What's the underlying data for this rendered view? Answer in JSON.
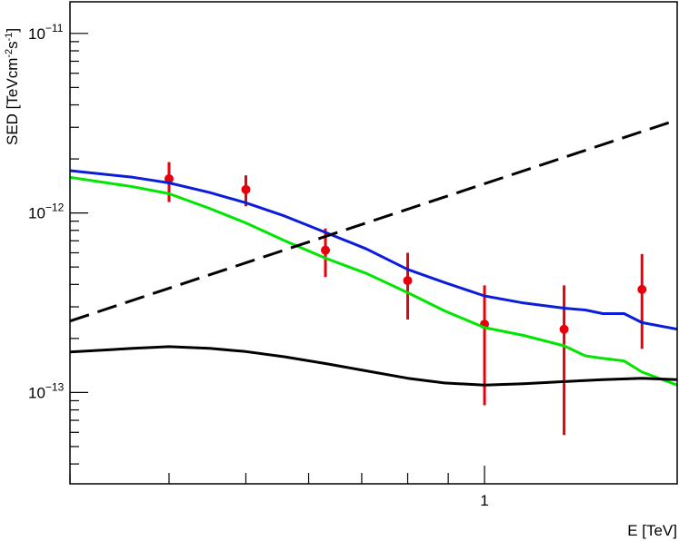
{
  "chart_data": {
    "type": "scatter",
    "title": "",
    "xlabel": "E [TeV]",
    "ylabel_parts": {
      "lead": "SED [TeVcm",
      "exp1": "-2",
      "mid": "s",
      "exp2": "-1",
      "tail": "]"
    },
    "x_scale": "log",
    "y_scale": "log",
    "xlim": [
      0.3,
      1.75
    ],
    "ylim": [
      3.1e-14,
      1.5e-11
    ],
    "x_tick_labels": [
      {
        "value": 1,
        "label": "1"
      }
    ],
    "y_tick_labels": [
      {
        "value": 1e-13,
        "base": "10",
        "exp": "−13"
      },
      {
        "value": 1e-12,
        "base": "10",
        "exp": "−12"
      },
      {
        "value": 1e-11,
        "base": "10",
        "exp": "−11"
      }
    ],
    "grid": false,
    "series": [
      {
        "kind": "points",
        "color": "#e8000b",
        "points": [
          {
            "x": 0.4,
            "y": 1.55e-12,
            "ylo": 1.15e-12,
            "yhi": 1.92e-12
          },
          {
            "x": 0.5,
            "y": 1.35e-12,
            "ylo": 1.09e-12,
            "yhi": 1.62e-12
          },
          {
            "x": 0.63,
            "y": 6.2e-13,
            "ylo": 4.4e-13,
            "yhi": 8.2e-13
          },
          {
            "x": 0.8,
            "y": 4.2e-13,
            "ylo": 2.55e-13,
            "yhi": 6e-13
          },
          {
            "x": 1.0,
            "y": 2.4e-13,
            "ylo": 8.5e-14,
            "yhi": 3.95e-13
          },
          {
            "x": 1.26,
            "y": 2.25e-13,
            "ylo": 5.8e-14,
            "yhi": 3.95e-13
          },
          {
            "x": 1.58,
            "y": 3.75e-13,
            "ylo": 1.75e-13,
            "yhi": 5.9e-13
          }
        ]
      },
      {
        "kind": "line",
        "color": "#0b1ddb",
        "dash": "solid",
        "points": [
          [
            0.3,
            1.72e-12
          ],
          [
            0.36,
            1.58e-12
          ],
          [
            0.4,
            1.47e-12
          ],
          [
            0.45,
            1.3e-12
          ],
          [
            0.5,
            1.14e-12
          ],
          [
            0.56,
            9.6e-13
          ],
          [
            0.63,
            7.8e-13
          ],
          [
            0.71,
            6.3e-13
          ],
          [
            0.8,
            4.85e-13
          ],
          [
            0.89,
            4.1e-13
          ],
          [
            1.0,
            3.45e-13
          ],
          [
            1.12,
            3.15e-13
          ],
          [
            1.26,
            2.95e-13
          ],
          [
            1.34,
            2.88e-13
          ],
          [
            1.41,
            2.75e-13
          ],
          [
            1.5,
            2.75e-13
          ],
          [
            1.58,
            2.45e-13
          ],
          [
            1.75,
            2.25e-13
          ]
        ]
      },
      {
        "kind": "line",
        "color": "#00e600",
        "dash": "solid",
        "points": [
          [
            0.3,
            1.58e-12
          ],
          [
            0.36,
            1.4e-12
          ],
          [
            0.4,
            1.28e-12
          ],
          [
            0.45,
            1.06e-12
          ],
          [
            0.5,
            8.8e-13
          ],
          [
            0.56,
            7e-13
          ],
          [
            0.63,
            5.6e-13
          ],
          [
            0.71,
            4.6e-13
          ],
          [
            0.8,
            3.6e-13
          ],
          [
            0.89,
            2.85e-13
          ],
          [
            1.0,
            2.3e-13
          ],
          [
            1.12,
            2.08e-13
          ],
          [
            1.26,
            1.82e-13
          ],
          [
            1.34,
            1.6e-13
          ],
          [
            1.41,
            1.55e-13
          ],
          [
            1.5,
            1.5e-13
          ],
          [
            1.58,
            1.3e-13
          ],
          [
            1.75,
            1.1e-13
          ]
        ]
      },
      {
        "kind": "line",
        "color": "#000000",
        "dash": "dashed",
        "points": [
          [
            0.3,
            2.5e-13
          ],
          [
            1.75,
            3.3e-12
          ]
        ]
      },
      {
        "kind": "line",
        "color": "#000000",
        "dash": "solid",
        "points": [
          [
            0.3,
            1.68e-13
          ],
          [
            0.36,
            1.76e-13
          ],
          [
            0.4,
            1.8e-13
          ],
          [
            0.45,
            1.76e-13
          ],
          [
            0.5,
            1.69e-13
          ],
          [
            0.56,
            1.58e-13
          ],
          [
            0.63,
            1.45e-13
          ],
          [
            0.71,
            1.32e-13
          ],
          [
            0.8,
            1.2e-13
          ],
          [
            0.89,
            1.13e-13
          ],
          [
            1.0,
            1.1e-13
          ],
          [
            1.12,
            1.12e-13
          ],
          [
            1.26,
            1.15e-13
          ],
          [
            1.41,
            1.18e-13
          ],
          [
            1.58,
            1.2e-13
          ],
          [
            1.75,
            1.18e-13
          ]
        ]
      }
    ]
  }
}
